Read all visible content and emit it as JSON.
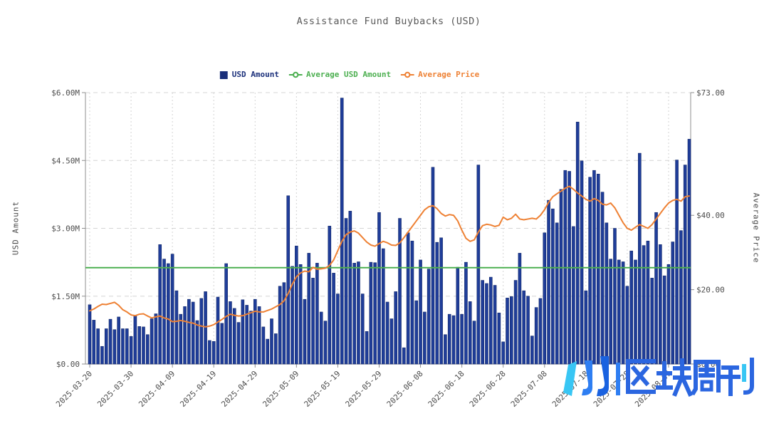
{
  "title": "Assistance Fund Buybacks (USD)",
  "legend": {
    "items": [
      {
        "label": "USD Amount",
        "color": "#1a2f7a",
        "marker": "square",
        "series_color": "#1f3d99"
      },
      {
        "label": "Average USD Amount",
        "color": "#4caf50",
        "marker": "line-circle",
        "series_color": "#4caf50"
      },
      {
        "label": "Average Price",
        "color": "#ee8134",
        "marker": "line-circle",
        "series_color": "#ee8134"
      }
    ]
  },
  "axes": {
    "left": {
      "label": "USD Amount",
      "ticks": [
        "$0.00",
        "$1.50M",
        "$3.00M",
        "$4.50M",
        "$6.00M"
      ],
      "range": [
        0,
        6
      ]
    },
    "right": {
      "label": "Average Price",
      "ticks": [
        "$0.00",
        "$20.00",
        "$40.00",
        "$73.00"
      ],
      "tick_values": [
        0,
        20,
        40,
        73
      ],
      "range": [
        0,
        73
      ]
    },
    "x": {
      "tick_labels": [
        "2025-03-20",
        "2025-03-30",
        "2025-04-09",
        "2025-04-19",
        "2025-04-29",
        "2025-05-09",
        "2025-05-19",
        "2025-05-29",
        "2025-06-08",
        "2025-06-18",
        "2025-06-28",
        "2025-07-08",
        "2025-07-18",
        "2025-07-28",
        "2025-08-07"
      ]
    }
  },
  "watermark": {
    "text": "区块周刊"
  },
  "colors": {
    "bar": "#1f3d99",
    "bar_border": "#13296b",
    "avg_usd_line": "#4caf50",
    "avg_price_line": "#ee8134",
    "grid": "#d4d4d4",
    "axis_line": "#8f8f8f",
    "tick_text": "#4d4d4d",
    "title_text": "#595959",
    "wm_cyan": "#38c6f4",
    "wm_blue": "#2e7ef2",
    "wm_deep_blue": "#1a62e0",
    "wm_char_blue": "#2b66e0"
  },
  "chart_data": {
    "type": "bar",
    "title": "Assistance Fund Buybacks (USD)",
    "x_start_date": "2025-03-20",
    "x_end_date": "2025-08-12",
    "x_interval": "1 day",
    "x_tick_labels": [
      "2025-03-20",
      "2025-03-30",
      "2025-04-09",
      "2025-04-19",
      "2025-04-29",
      "2025-05-09",
      "2025-05-19",
      "2025-05-29",
      "2025-06-08",
      "2025-06-18",
      "2025-06-28",
      "2025-07-08",
      "2025-07-18",
      "2025-07-28",
      "2025-08-07"
    ],
    "grid": true,
    "legend_position": "top",
    "left_axis": {
      "label": "USD Amount",
      "unit": "USD millions",
      "ylim": [
        0,
        6
      ]
    },
    "right_axis": {
      "label": "Average Price",
      "unit": "USD",
      "ylim": [
        0,
        73
      ]
    },
    "series": [
      {
        "name": "USD Amount",
        "type": "bar",
        "axis": "left",
        "unit": "USD millions (daily buybacks)",
        "values": [
          1.31,
          0.97,
          0.78,
          0.39,
          0.78,
          0.99,
          0.76,
          1.04,
          0.78,
          0.78,
          0.61,
          1.07,
          0.83,
          0.82,
          0.65,
          1.0,
          1.11,
          2.64,
          2.32,
          2.22,
          2.43,
          1.62,
          1.1,
          1.27,
          1.43,
          1.37,
          0.96,
          1.45,
          1.6,
          0.52,
          0.5,
          1.48,
          0.9,
          2.22,
          1.38,
          1.23,
          0.92,
          1.42,
          1.3,
          1.17,
          1.43,
          1.27,
          0.82,
          0.55,
          1.0,
          0.67,
          1.72,
          1.8,
          3.72,
          2.16,
          2.61,
          2.2,
          1.43,
          2.45,
          1.9,
          2.23,
          1.15,
          0.95,
          3.05,
          2.01,
          1.55,
          5.88,
          3.22,
          3.38,
          2.23,
          2.26,
          1.55,
          0.72,
          2.25,
          2.24,
          3.35,
          2.55,
          1.37,
          1.0,
          1.6,
          3.22,
          0.36,
          2.9,
          2.72,
          1.4,
          2.3,
          1.15,
          2.1,
          4.35,
          2.69,
          2.79,
          0.65,
          1.1,
          1.07,
          2.14,
          1.1,
          2.25,
          1.38,
          0.95,
          4.4,
          1.85,
          1.78,
          1.92,
          1.74,
          1.13,
          0.49,
          1.46,
          1.49,
          1.85,
          2.45,
          1.62,
          1.5,
          0.62,
          1.25,
          1.45,
          2.9,
          3.62,
          3.43,
          3.12,
          3.86,
          4.28,
          4.26,
          3.04,
          5.35,
          4.49,
          1.62,
          4.13,
          4.28,
          4.2,
          3.8,
          3.12,
          2.32,
          3.0,
          2.3,
          2.26,
          1.72,
          2.5,
          2.3,
          4.66,
          2.62,
          2.72,
          1.9,
          3.35,
          2.64,
          1.95,
          2.2,
          2.7,
          4.51,
          2.95,
          4.4,
          4.97
        ]
      },
      {
        "name": "Average USD Amount",
        "type": "line",
        "axis": "left",
        "unit": "USD millions",
        "constant": true,
        "value": 2.13
      },
      {
        "name": "Average Price",
        "type": "line",
        "axis": "right",
        "unit": "USD",
        "values": [
          14.3,
          14.8,
          15.5,
          16.1,
          16.0,
          16.3,
          16.6,
          15.8,
          14.6,
          14.0,
          13.2,
          13.0,
          13.4,
          13.5,
          12.9,
          12.4,
          12.7,
          12.9,
          12.4,
          12.1,
          11.4,
          11.5,
          11.7,
          11.5,
          11.2,
          11.0,
          10.5,
          10.2,
          10.0,
          10.2,
          10.6,
          11.3,
          12.0,
          12.8,
          13.4,
          13.1,
          12.9,
          13.0,
          13.4,
          13.8,
          14.2,
          14.0,
          14.0,
          14.4,
          14.8,
          15.4,
          16.0,
          17.0,
          19.0,
          21.5,
          23.5,
          24.5,
          25.0,
          24.8,
          26.0,
          25.5,
          25.6,
          25.8,
          26.5,
          28.0,
          30.5,
          33.0,
          34.8,
          35.5,
          35.8,
          35.2,
          34.0,
          32.8,
          32.0,
          31.7,
          32.4,
          33.0,
          32.6,
          32.0,
          31.9,
          32.6,
          34.0,
          35.5,
          37.0,
          38.5,
          40.0,
          41.5,
          42.3,
          42.6,
          41.8,
          40.5,
          39.8,
          40.2,
          40.0,
          38.5,
          36.0,
          33.8,
          33.0,
          33.4,
          35.5,
          37.2,
          37.6,
          37.4,
          37.0,
          37.3,
          39.5,
          38.8,
          39.2,
          40.3,
          39.0,
          38.8,
          39.0,
          39.2,
          39.0,
          40.0,
          41.5,
          43.5,
          45.0,
          45.8,
          46.5,
          47.3,
          47.8,
          47.0,
          46.0,
          45.2,
          44.3,
          43.8,
          44.5,
          44.0,
          43.0,
          42.8,
          43.3,
          42.0,
          40.0,
          38.0,
          36.5,
          36.0,
          36.8,
          37.5,
          37.0,
          36.5,
          37.5,
          39.0,
          40.5,
          42.0,
          43.3,
          44.0,
          44.3,
          43.8,
          45.0,
          45.2
        ]
      }
    ]
  }
}
